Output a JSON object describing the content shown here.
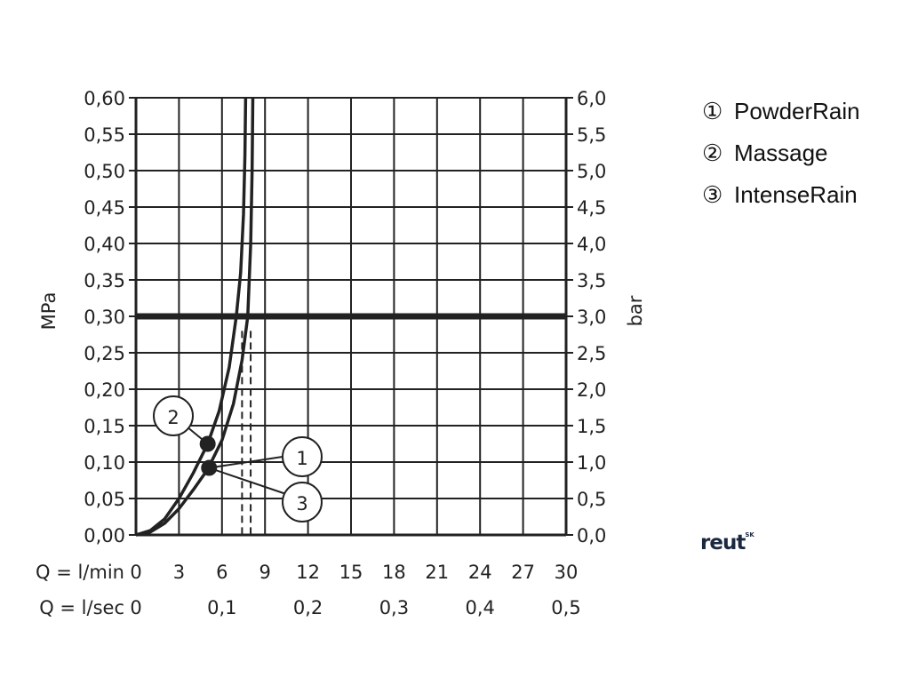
{
  "chart_data": {
    "type": "line",
    "xlabel_lmin": "Q = l/min",
    "xlabel_lsec": "Q = l/sec",
    "ylabel_left": "MPa",
    "ylabel_right": "bar",
    "xlim": [
      0,
      30
    ],
    "ylim": [
      0,
      0.6
    ],
    "x_ticks": [
      "0",
      "3",
      "6",
      "9",
      "12",
      "15",
      "18",
      "21",
      "24",
      "27",
      "30"
    ],
    "x_ticks_lsec": [
      "0",
      "0,1",
      "0,2",
      "0,3",
      "0,4",
      "0,5"
    ],
    "y_ticks_left": [
      "0,00",
      "0,05",
      "0,10",
      "0,15",
      "0,20",
      "0,25",
      "0,30",
      "0,35",
      "0,40",
      "0,45",
      "0,50",
      "0,55",
      "0,60"
    ],
    "y_ticks_right": [
      "0,0",
      "0,5",
      "1,0",
      "1,5",
      "2,0",
      "2,5",
      "3,0",
      "3,5",
      "4,0",
      "4,5",
      "5,0",
      "5,5",
      "6,0"
    ],
    "grid": true,
    "reference_line_y": 0.3,
    "series": [
      {
        "name": "Massage",
        "marker_label": "2",
        "x": [
          0,
          1,
          2,
          3,
          4,
          5,
          5.8,
          6.5,
          7.0,
          7.3,
          7.5,
          7.6,
          7.65
        ],
        "y": [
          0,
          0.006,
          0.022,
          0.05,
          0.085,
          0.125,
          0.17,
          0.23,
          0.3,
          0.36,
          0.44,
          0.52,
          0.6
        ]
      },
      {
        "name": "PowderRain / IntenseRain",
        "marker_label": "1 / 3",
        "x": [
          0,
          1,
          2,
          3,
          4,
          5,
          6,
          6.8,
          7.4,
          7.8,
          8.0,
          8.1,
          8.15
        ],
        "y": [
          0,
          0.004,
          0.016,
          0.036,
          0.062,
          0.09,
          0.13,
          0.18,
          0.24,
          0.3,
          0.4,
          0.5,
          0.6
        ]
      }
    ],
    "dashed_lines_x": [
      7.4,
      8.0
    ],
    "points": [
      {
        "label": "2",
        "x": 5.0,
        "y": 0.125
      },
      {
        "label": "1",
        "x": 5.1,
        "y": 0.092
      },
      {
        "label": "3",
        "x": 5.1,
        "y": 0.092
      }
    ]
  },
  "legend": [
    {
      "marker": "①",
      "label": "PowderRain"
    },
    {
      "marker": "②",
      "label": "Massage"
    },
    {
      "marker": "③",
      "label": "IntenseRain"
    }
  ],
  "logo": {
    "text": "reut",
    "sup": "SK"
  }
}
